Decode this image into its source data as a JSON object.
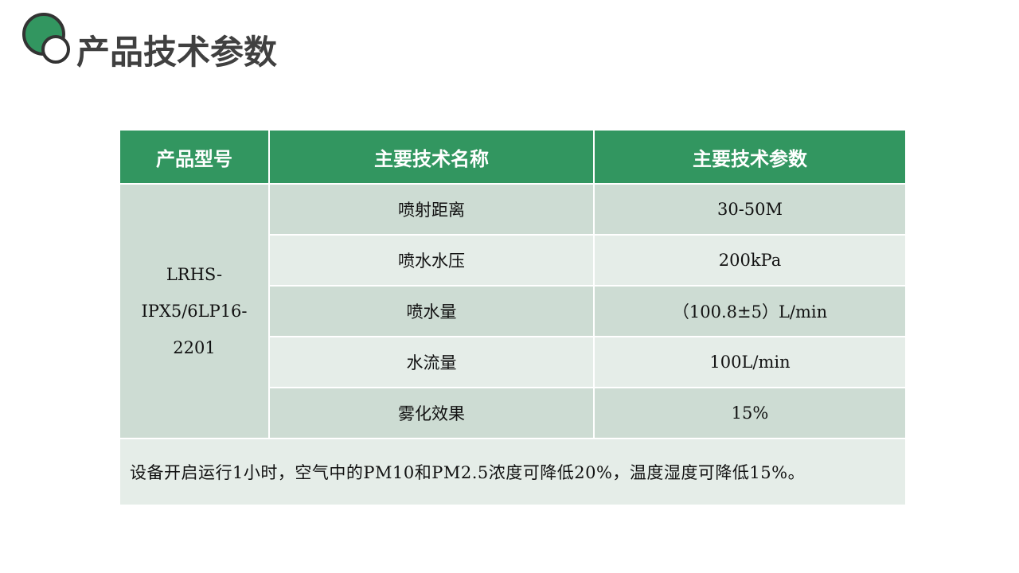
{
  "page": {
    "title": "产品技术参数"
  },
  "colors": {
    "accent_green": "#329660",
    "row_dark": "#cddcd3",
    "row_light": "#e5ede8",
    "title_gray": "#404040"
  },
  "logo": {
    "icon": "two-overlapping-circles-icon"
  },
  "table": {
    "headers": [
      "产品型号",
      "主要技术名称",
      "主要技术参数"
    ],
    "model_lines": [
      "LRHS-",
      "IPX5/6LP16-",
      "2201"
    ],
    "rows": [
      {
        "name": "喷射距离",
        "value": "30-50M"
      },
      {
        "name": "喷水水压",
        "value": "200kPa"
      },
      {
        "name": "喷水量",
        "value": "（100.8±5）L/min"
      },
      {
        "name": "水流量",
        "value": "100L/min"
      },
      {
        "name": "雾化效果",
        "value": "15%"
      }
    ],
    "note": "设备开启运行1小时，空气中的PM10和PM2.5浓度可降低20%，温度湿度可降低15%。"
  }
}
